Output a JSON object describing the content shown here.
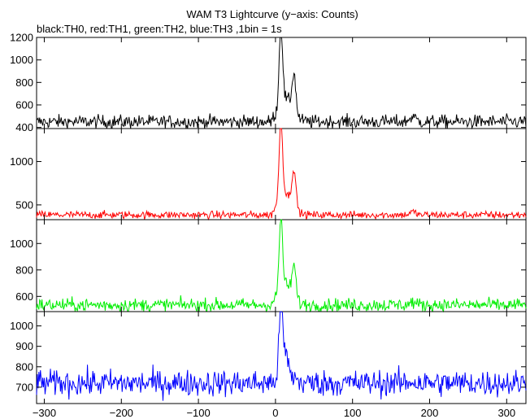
{
  "chart_data": {
    "type": "line",
    "title": "WAM T3 Lightcurve (y−axis: Counts)",
    "subtitle": "black:TH0, red:TH1, green:TH2, blue:TH3 ,1bin = 1s",
    "xlim": [
      -310,
      325
    ],
    "xticks": [
      -300,
      -200,
      -100,
      0,
      100,
      200,
      300
    ],
    "xtick_labels": [
      "−300",
      "−200",
      "−100",
      "0",
      "100",
      "200",
      "300"
    ],
    "panels": [
      {
        "name": "TH0",
        "color": "#000000",
        "ylim": [
          390,
          1200
        ],
        "yticks": [
          400,
          600,
          800,
          1000,
          1200
        ],
        "ytick_labels": [
          "400",
          "600",
          "800",
          "1000",
          "1200"
        ],
        "baseline": 450,
        "noise": 30,
        "burst": {
          "peak1_t": 7,
          "peak1_h": 720,
          "peak2_t": 24,
          "peak2_h": 340,
          "bridge_h": 200,
          "bump_t": 178,
          "bump_h": 45
        }
      },
      {
        "name": "TH1",
        "color": "#ff0000",
        "ylim": [
          330,
          1380
        ],
        "yticks": [
          500,
          1000
        ],
        "ytick_labels": [
          "500",
          "1000"
        ],
        "baseline": 385,
        "noise": 22,
        "burst": {
          "peak1_t": 7,
          "peak1_h": 950,
          "peak2_t": 24,
          "peak2_h": 420,
          "bridge_h": 240,
          "bump_t": 178,
          "bump_h": 35
        }
      },
      {
        "name": "TH2",
        "color": "#00ee00",
        "ylim": [
          485,
          1180
        ],
        "yticks": [
          600,
          800,
          1000
        ],
        "ytick_labels": [
          "600",
          "800",
          "1000"
        ],
        "baseline": 535,
        "noise": 25,
        "burst": {
          "peak1_t": 7,
          "peak1_h": 560,
          "peak2_t": 24,
          "peak2_h": 230,
          "bridge_h": 150,
          "bump_t": 178,
          "bump_h": 20
        }
      },
      {
        "name": "TH3",
        "color": "#0000ff",
        "ylim": [
          620,
          1070
        ],
        "yticks": [
          700,
          800,
          900,
          1000
        ],
        "ytick_labels": [
          "700",
          "800",
          "900",
          "1000"
        ],
        "baseline": 720,
        "noise": 32,
        "burst": {
          "peak1_t": 7,
          "peak1_h": 330,
          "peak2_t": 13,
          "peak2_h": 90,
          "bridge_h": 60,
          "bump_t": 178,
          "bump_h": 10
        }
      }
    ]
  }
}
